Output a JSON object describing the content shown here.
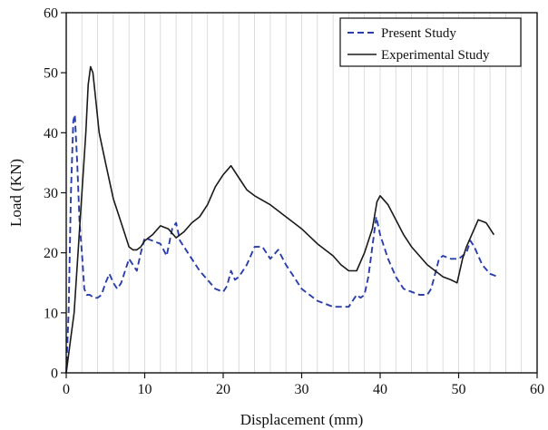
{
  "chart_data": {
    "type": "line",
    "xlabel": "Displacement (mm)",
    "ylabel": "Load (KN)",
    "xlim": [
      0,
      60
    ],
    "ylim": [
      0,
      60
    ],
    "xticks": [
      0,
      10,
      20,
      30,
      40,
      50,
      60
    ],
    "yticks": [
      0,
      10,
      20,
      30,
      40,
      50,
      60
    ],
    "grid": "vertical minor every 2 mm",
    "legend_position": "top-right",
    "series": [
      {
        "name": "Present Study",
        "style": "dashed",
        "color": "#2b3fa8",
        "x": [
          0,
          0.3,
          0.6,
          0.9,
          1.1,
          1.4,
          1.7,
          2.0,
          2.3,
          2.6,
          3.0,
          3.5,
          4.0,
          4.5,
          5.0,
          5.5,
          6.0,
          6.5,
          7.0,
          7.5,
          8.0,
          8.5,
          9.0,
          9.5,
          10.0,
          11.0,
          12.0,
          12.8,
          13.5,
          14.0,
          14.5,
          15.0,
          16.0,
          17.0,
          18.0,
          19.0,
          20.0,
          20.5,
          21.0,
          21.5,
          22.0,
          23.0,
          24.0,
          25.0,
          26.0,
          27.0,
          28.0,
          29.0,
          30.0,
          31.0,
          32.0,
          33.0,
          34.0,
          35.0,
          36.0,
          36.5,
          37.0,
          37.5,
          38.0,
          38.5,
          39.0,
          39.5,
          40.0,
          41.0,
          42.0,
          43.0,
          44.0,
          45.0,
          46.0,
          46.5,
          47.0,
          47.5,
          48.0,
          49.0,
          50.0,
          51.0,
          51.5,
          52.0,
          53.0,
          54.0,
          55.0
        ],
        "y": [
          0,
          10,
          30,
          42,
          43,
          35,
          25,
          20,
          14,
          13,
          13,
          12.5,
          12.5,
          13,
          15,
          16.5,
          15,
          14,
          15,
          17,
          19,
          18,
          17,
          20,
          22.5,
          22,
          21.5,
          19.5,
          24,
          25,
          22,
          21,
          19,
          17,
          15.5,
          14,
          13.5,
          14.5,
          17,
          15.5,
          16,
          18,
          21,
          21,
          19,
          20.5,
          18,
          16,
          14,
          13,
          12,
          11.5,
          11,
          11,
          11,
          12,
          13,
          12.5,
          13,
          16,
          21,
          26,
          23,
          19,
          16,
          14,
          13.5,
          13,
          13,
          14,
          16.5,
          19,
          19.5,
          19,
          19,
          20,
          22,
          21,
          18,
          16.5,
          16
        ]
      },
      {
        "name": "Experimental Study",
        "style": "solid",
        "color": "#1a1a1a",
        "x": [
          0,
          0.5,
          1.0,
          1.5,
          2.0,
          2.5,
          2.8,
          3.1,
          3.4,
          3.8,
          4.2,
          5.0,
          6.0,
          7.0,
          8.0,
          8.5,
          9.0,
          9.5,
          10.0,
          11.0,
          12.0,
          13.0,
          14.0,
          15.0,
          16.0,
          17.0,
          18.0,
          19.0,
          20.0,
          21.0,
          22.0,
          23.0,
          24.0,
          26.0,
          28.0,
          30.0,
          32.0,
          34.0,
          35.0,
          36.0,
          37.0,
          38.0,
          39.0,
          39.6,
          40.0,
          41.0,
          42.0,
          43.0,
          44.0,
          45.0,
          46.0,
          47.0,
          48.0,
          49.0,
          49.8,
          50.5,
          51.0,
          52.0,
          52.5,
          53.5,
          54.5
        ],
        "y": [
          0,
          5,
          10,
          20,
          30,
          40,
          48,
          51,
          50,
          45,
          40,
          35,
          29,
          25,
          21,
          20.5,
          20.5,
          21,
          22,
          23,
          24.5,
          24,
          22.5,
          23.5,
          25,
          26,
          28,
          31,
          33,
          34.5,
          32.5,
          30.5,
          29.5,
          28,
          26,
          24,
          21.5,
          19.5,
          18,
          17,
          17,
          20,
          24,
          28.5,
          29.5,
          28,
          25.5,
          23,
          21,
          19.5,
          18,
          17,
          16,
          15.5,
          15,
          19,
          21,
          24,
          25.5,
          25,
          23
        ]
      }
    ]
  }
}
